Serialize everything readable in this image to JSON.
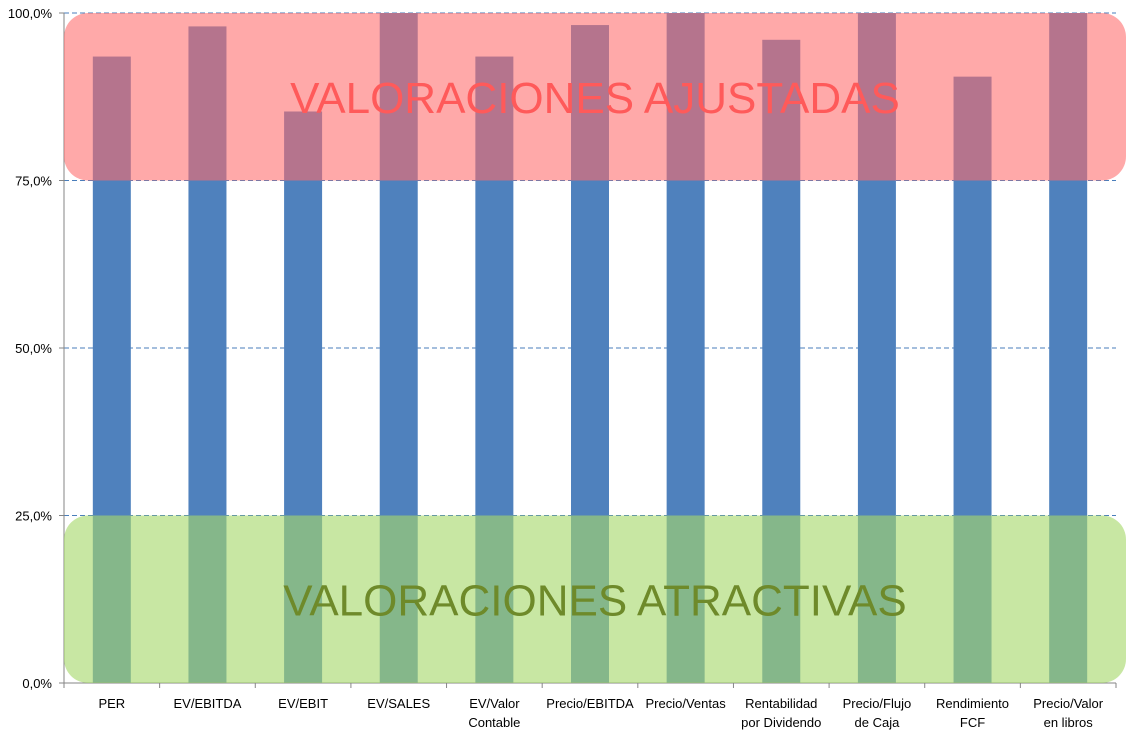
{
  "chart_data": {
    "type": "bar",
    "title": "",
    "xlabel": "",
    "ylabel": "",
    "ylim": [
      0,
      100
    ],
    "yticks": [
      0,
      25,
      50,
      75,
      100
    ],
    "ytick_labels": [
      "0,0%",
      "25,0%",
      "50,0%",
      "75,0%",
      "100,0%"
    ],
    "grid": true,
    "categories": [
      [
        "PER"
      ],
      [
        "EV/EBITDA"
      ],
      [
        "EV/EBIT"
      ],
      [
        "EV/SALES"
      ],
      [
        "EV/Valor",
        "Contable"
      ],
      [
        "Precio/EBITDA"
      ],
      [
        "Precio/Ventas"
      ],
      [
        "Rentabilidad",
        "por Dividendo"
      ],
      [
        "Precio/Flujo",
        "de Caja"
      ],
      [
        "Rendimiento",
        "FCF"
      ],
      [
        "Precio/Valor",
        "en libros"
      ]
    ],
    "values": [
      93.5,
      98.0,
      85.3,
      100.0,
      93.5,
      98.2,
      100.0,
      96.0,
      100.0,
      90.5,
      100.0
    ],
    "bar_color": "#4f81bd",
    "bands": [
      {
        "name": "upper",
        "label": "VALORACIONES AJUSTADAS",
        "range": [
          75,
          100
        ],
        "fill": "#ff6b6b",
        "opacity": 0.58,
        "text_color": "#ff5a5a"
      },
      {
        "name": "lower",
        "label": "VALORACIONES ATRACTIVAS",
        "range": [
          0,
          25
        ],
        "fill": "#a6d96a",
        "opacity": 0.62,
        "text_color": "#6e8a2a"
      }
    ]
  }
}
